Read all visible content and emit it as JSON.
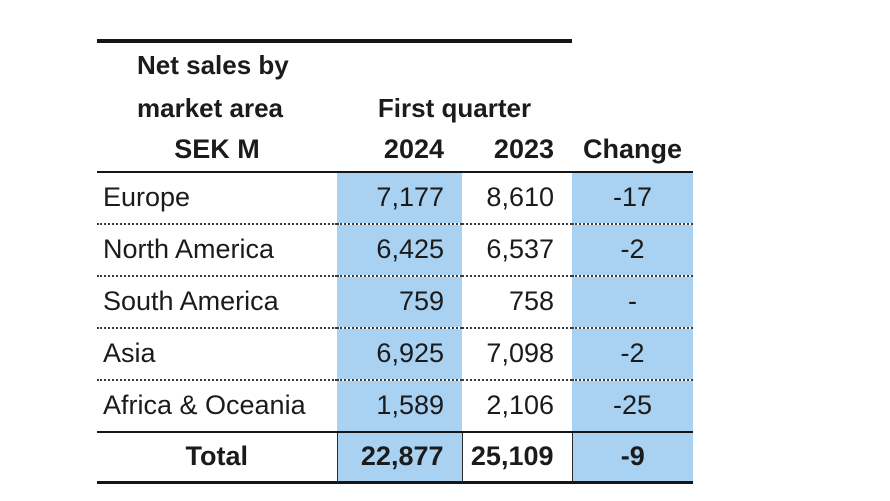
{
  "chart_data": {
    "type": "table",
    "title_line1": "Net sales by",
    "title_line2": "market area",
    "unit_label": "SEK M",
    "group_header": "First quarter",
    "columns": [
      "2024",
      "2023",
      "Change"
    ],
    "rows": [
      {
        "label": "Europe",
        "v2024": "7,177",
        "v2023": "8,610",
        "change": "-17"
      },
      {
        "label": "North America",
        "v2024": "6,425",
        "v2023": "6,537",
        "change": "-2"
      },
      {
        "label": "South America",
        "v2024": "759",
        "v2023": "758",
        "change": "-"
      },
      {
        "label": "Asia",
        "v2024": "6,925",
        "v2023": "7,098",
        "change": "-2"
      },
      {
        "label": "Africa & Oceania",
        "v2024": "1,589",
        "v2023": "2,106",
        "change": "-25"
      }
    ],
    "total_row": {
      "label": "Total",
      "v2024": "22,877",
      "v2023": "25,109",
      "change": "-9"
    },
    "highlighted_columns": [
      "2024",
      "Change"
    ],
    "colors": {
      "highlight": "#A8D1F2",
      "rule": "#161616",
      "text": "#1b1b1b"
    }
  }
}
